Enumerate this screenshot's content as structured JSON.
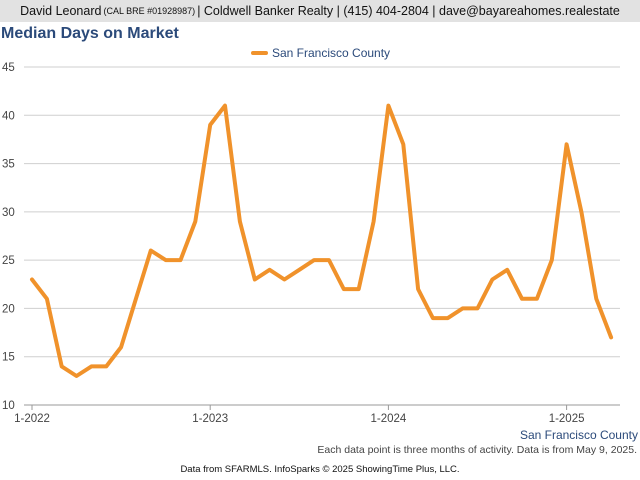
{
  "header": {
    "name": "David Leonard",
    "license": "(CAL BRE #01928987)",
    "rest": "| Coldwell Banker Realty | (415) 404-2804 | dave@bayareahomes.realestate"
  },
  "footer": {
    "note": "Each data point is three months of activity. Data is from May 9, 2025.",
    "credit": "Data from SFARMLS. InfoSparks © 2025 ShowingTime Plus, LLC."
  },
  "colors": {
    "series": "#f0922b",
    "title": "#2b4a7a",
    "grid": "#cfcfcf"
  },
  "chart_data": {
    "type": "line",
    "title": "Median Days on Market",
    "xlabel": "",
    "ylabel": "",
    "region_label": "San Francisco County",
    "legend_position": "top-center",
    "grid": true,
    "ylim": [
      10,
      45
    ],
    "yticks": [
      10,
      15,
      20,
      25,
      30,
      35,
      40,
      45
    ],
    "xticks": [
      {
        "label": "1-2022",
        "index": 0
      },
      {
        "label": "1-2023",
        "index": 12
      },
      {
        "label": "1-2024",
        "index": 24
      },
      {
        "label": "1-2025",
        "index": 36
      }
    ],
    "x": [
      "1-2022",
      "2-2022",
      "3-2022",
      "4-2022",
      "5-2022",
      "6-2022",
      "7-2022",
      "8-2022",
      "9-2022",
      "10-2022",
      "11-2022",
      "12-2022",
      "1-2023",
      "2-2023",
      "3-2023",
      "4-2023",
      "5-2023",
      "6-2023",
      "7-2023",
      "8-2023",
      "9-2023",
      "10-2023",
      "11-2023",
      "12-2023",
      "1-2024",
      "2-2024",
      "3-2024",
      "4-2024",
      "5-2024",
      "6-2024",
      "7-2024",
      "8-2024",
      "9-2024",
      "10-2024",
      "11-2024",
      "12-2024",
      "1-2025",
      "2-2025",
      "3-2025",
      "4-2025"
    ],
    "series": [
      {
        "name": "San Francisco County",
        "values": [
          23,
          21,
          14,
          13,
          14,
          14,
          16,
          21,
          26,
          25,
          25,
          29,
          39,
          41,
          29,
          23,
          24,
          23,
          24,
          25,
          25,
          22,
          22,
          29,
          41,
          37,
          22,
          19,
          19,
          20,
          20,
          23,
          24,
          21,
          21,
          25,
          37,
          30,
          21,
          17
        ]
      }
    ]
  }
}
